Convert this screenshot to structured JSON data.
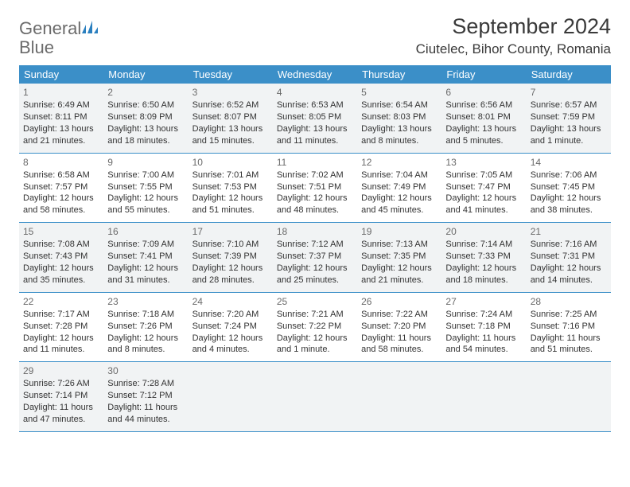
{
  "logo": {
    "text1": "General",
    "text2": "Blue"
  },
  "header": {
    "month_title": "September 2024",
    "location": "Ciutelec, Bihor County, Romania"
  },
  "day_labels": [
    "Sunday",
    "Monday",
    "Tuesday",
    "Wednesday",
    "Thursday",
    "Friday",
    "Saturday"
  ],
  "colors": {
    "header_bg": "#3b8fc8",
    "header_fg": "#ffffff",
    "row_alt_bg": "#f1f3f4",
    "border": "#3b8fc8",
    "logo_gray": "#6b6b6b",
    "logo_blue": "#2a7fbf"
  },
  "weeks": [
    {
      "alt": true,
      "days": [
        {
          "n": "1",
          "sunrise": "6:49 AM",
          "sunset": "8:11 PM",
          "dl": "13 hours and 21 minutes."
        },
        {
          "n": "2",
          "sunrise": "6:50 AM",
          "sunset": "8:09 PM",
          "dl": "13 hours and 18 minutes."
        },
        {
          "n": "3",
          "sunrise": "6:52 AM",
          "sunset": "8:07 PM",
          "dl": "13 hours and 15 minutes."
        },
        {
          "n": "4",
          "sunrise": "6:53 AM",
          "sunset": "8:05 PM",
          "dl": "13 hours and 11 minutes."
        },
        {
          "n": "5",
          "sunrise": "6:54 AM",
          "sunset": "8:03 PM",
          "dl": "13 hours and 8 minutes."
        },
        {
          "n": "6",
          "sunrise": "6:56 AM",
          "sunset": "8:01 PM",
          "dl": "13 hours and 5 minutes."
        },
        {
          "n": "7",
          "sunrise": "6:57 AM",
          "sunset": "7:59 PM",
          "dl": "13 hours and 1 minute."
        }
      ]
    },
    {
      "alt": false,
      "days": [
        {
          "n": "8",
          "sunrise": "6:58 AM",
          "sunset": "7:57 PM",
          "dl": "12 hours and 58 minutes."
        },
        {
          "n": "9",
          "sunrise": "7:00 AM",
          "sunset": "7:55 PM",
          "dl": "12 hours and 55 minutes."
        },
        {
          "n": "10",
          "sunrise": "7:01 AM",
          "sunset": "7:53 PM",
          "dl": "12 hours and 51 minutes."
        },
        {
          "n": "11",
          "sunrise": "7:02 AM",
          "sunset": "7:51 PM",
          "dl": "12 hours and 48 minutes."
        },
        {
          "n": "12",
          "sunrise": "7:04 AM",
          "sunset": "7:49 PM",
          "dl": "12 hours and 45 minutes."
        },
        {
          "n": "13",
          "sunrise": "7:05 AM",
          "sunset": "7:47 PM",
          "dl": "12 hours and 41 minutes."
        },
        {
          "n": "14",
          "sunrise": "7:06 AM",
          "sunset": "7:45 PM",
          "dl": "12 hours and 38 minutes."
        }
      ]
    },
    {
      "alt": true,
      "days": [
        {
          "n": "15",
          "sunrise": "7:08 AM",
          "sunset": "7:43 PM",
          "dl": "12 hours and 35 minutes."
        },
        {
          "n": "16",
          "sunrise": "7:09 AM",
          "sunset": "7:41 PM",
          "dl": "12 hours and 31 minutes."
        },
        {
          "n": "17",
          "sunrise": "7:10 AM",
          "sunset": "7:39 PM",
          "dl": "12 hours and 28 minutes."
        },
        {
          "n": "18",
          "sunrise": "7:12 AM",
          "sunset": "7:37 PM",
          "dl": "12 hours and 25 minutes."
        },
        {
          "n": "19",
          "sunrise": "7:13 AM",
          "sunset": "7:35 PM",
          "dl": "12 hours and 21 minutes."
        },
        {
          "n": "20",
          "sunrise": "7:14 AM",
          "sunset": "7:33 PM",
          "dl": "12 hours and 18 minutes."
        },
        {
          "n": "21",
          "sunrise": "7:16 AM",
          "sunset": "7:31 PM",
          "dl": "12 hours and 14 minutes."
        }
      ]
    },
    {
      "alt": false,
      "days": [
        {
          "n": "22",
          "sunrise": "7:17 AM",
          "sunset": "7:28 PM",
          "dl": "12 hours and 11 minutes."
        },
        {
          "n": "23",
          "sunrise": "7:18 AM",
          "sunset": "7:26 PM",
          "dl": "12 hours and 8 minutes."
        },
        {
          "n": "24",
          "sunrise": "7:20 AM",
          "sunset": "7:24 PM",
          "dl": "12 hours and 4 minutes."
        },
        {
          "n": "25",
          "sunrise": "7:21 AM",
          "sunset": "7:22 PM",
          "dl": "12 hours and 1 minute."
        },
        {
          "n": "26",
          "sunrise": "7:22 AM",
          "sunset": "7:20 PM",
          "dl": "11 hours and 58 minutes."
        },
        {
          "n": "27",
          "sunrise": "7:24 AM",
          "sunset": "7:18 PM",
          "dl": "11 hours and 54 minutes."
        },
        {
          "n": "28",
          "sunrise": "7:25 AM",
          "sunset": "7:16 PM",
          "dl": "11 hours and 51 minutes."
        }
      ]
    },
    {
      "alt": true,
      "days": [
        {
          "n": "29",
          "sunrise": "7:26 AM",
          "sunset": "7:14 PM",
          "dl": "11 hours and 47 minutes."
        },
        {
          "n": "30",
          "sunrise": "7:28 AM",
          "sunset": "7:12 PM",
          "dl": "11 hours and 44 minutes."
        },
        {
          "n": "",
          "sunrise": "",
          "sunset": "",
          "dl": ""
        },
        {
          "n": "",
          "sunrise": "",
          "sunset": "",
          "dl": ""
        },
        {
          "n": "",
          "sunrise": "",
          "sunset": "",
          "dl": ""
        },
        {
          "n": "",
          "sunrise": "",
          "sunset": "",
          "dl": ""
        },
        {
          "n": "",
          "sunrise": "",
          "sunset": "",
          "dl": ""
        }
      ]
    }
  ],
  "labels": {
    "sunrise": "Sunrise:",
    "sunset": "Sunset:",
    "daylight": "Daylight:"
  }
}
